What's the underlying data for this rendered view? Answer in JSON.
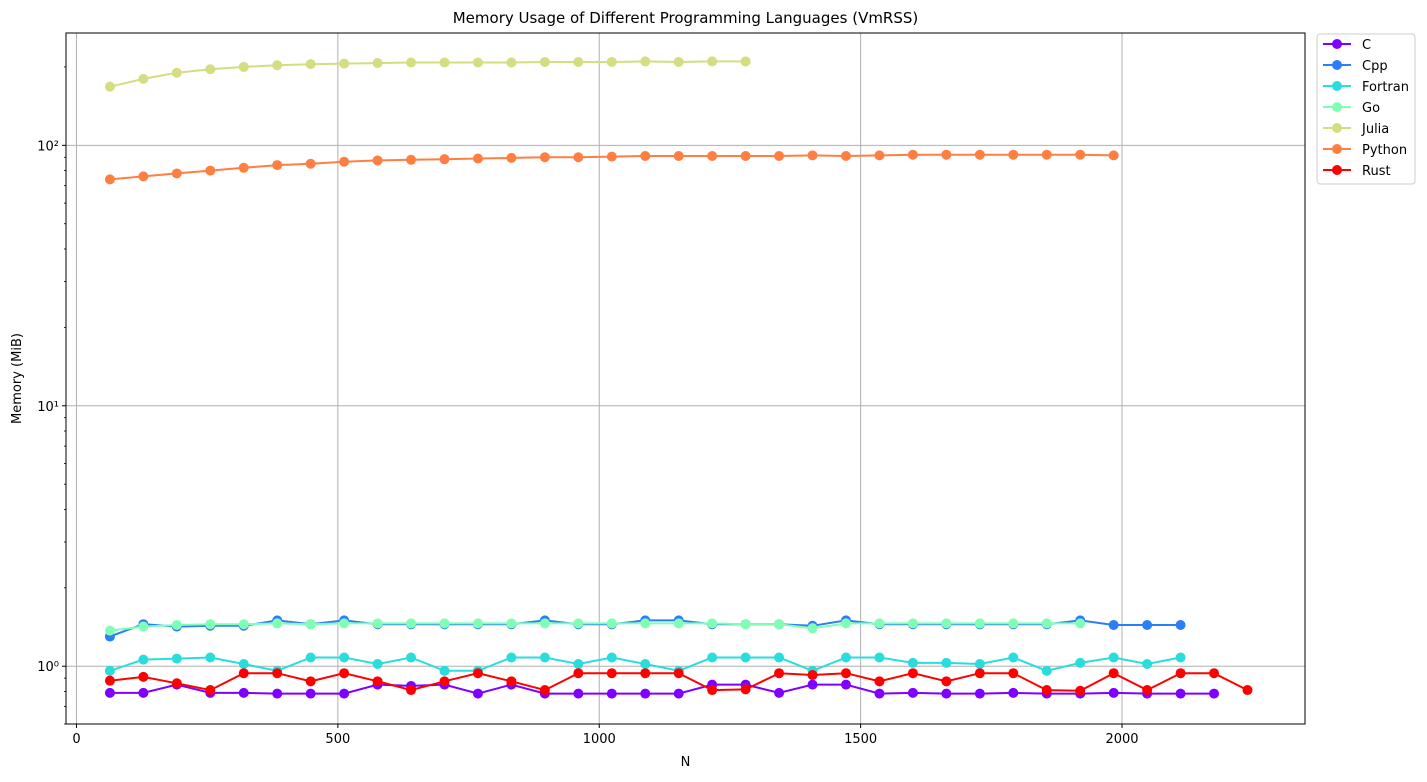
{
  "chart_data": {
    "type": "line",
    "title": "Memory Usage of Different Programming Languages (VmRSS)",
    "xlabel": "N",
    "ylabel": "Memory (MiB)",
    "xlim": [
      -20,
      2350
    ],
    "ylim": [
      0.6,
      270
    ],
    "yscale": "log",
    "grid": true,
    "legend_position": "outside-top-right",
    "x_ticks": [
      0,
      500,
      1000,
      1500,
      2000
    ],
    "x_tick_labels": [
      "0",
      "500",
      "1000",
      "1500",
      "2000"
    ],
    "y_ticks": [
      1,
      10,
      100
    ],
    "y_tick_labels": [
      "10⁰",
      "10¹",
      "10²"
    ],
    "series": [
      {
        "name": "C",
        "color": "#8000ff",
        "x": [
          64,
          128,
          192,
          256,
          320,
          384,
          448,
          512,
          576,
          640,
          704,
          768,
          832,
          896,
          960,
          1024,
          1088,
          1152,
          1216,
          1280,
          1344,
          1408,
          1472,
          1536,
          1600,
          1664,
          1728,
          1792,
          1856,
          1920,
          1984,
          2048,
          2112,
          2176
        ],
        "y": [
          0.79,
          0.79,
          0.85,
          0.79,
          0.79,
          0.785,
          0.785,
          0.785,
          0.85,
          0.84,
          0.85,
          0.785,
          0.85,
          0.785,
          0.785,
          0.785,
          0.785,
          0.785,
          0.85,
          0.85,
          0.79,
          0.85,
          0.85,
          0.785,
          0.79,
          0.785,
          0.785,
          0.79,
          0.785,
          0.785,
          0.79,
          0.785,
          0.785,
          0.785
        ]
      },
      {
        "name": "Cpp",
        "color": "#2c7ef7",
        "x": [
          64,
          128,
          192,
          256,
          320,
          384,
          448,
          512,
          576,
          640,
          704,
          768,
          832,
          896,
          960,
          1024,
          1088,
          1152,
          1216,
          1280,
          1344,
          1408,
          1472,
          1536,
          1600,
          1664,
          1728,
          1792,
          1856,
          1920,
          1984,
          2048,
          2112
        ],
        "y": [
          1.3,
          1.45,
          1.42,
          1.43,
          1.43,
          1.5,
          1.45,
          1.5,
          1.45,
          1.45,
          1.45,
          1.45,
          1.45,
          1.5,
          1.45,
          1.45,
          1.5,
          1.5,
          1.45,
          1.45,
          1.45,
          1.43,
          1.5,
          1.45,
          1.45,
          1.45,
          1.45,
          1.45,
          1.45,
          1.5,
          1.44,
          1.44,
          1.44
        ]
      },
      {
        "name": "Fortran",
        "color": "#2adddd",
        "x": [
          64,
          128,
          192,
          256,
          320,
          384,
          448,
          512,
          576,
          640,
          704,
          768,
          832,
          896,
          960,
          1024,
          1088,
          1152,
          1216,
          1280,
          1344,
          1408,
          1472,
          1536,
          1600,
          1664,
          1728,
          1792,
          1856,
          1920,
          1984,
          2048,
          2112
        ],
        "y": [
          0.96,
          1.06,
          1.07,
          1.08,
          1.02,
          0.96,
          1.08,
          1.08,
          1.02,
          1.08,
          0.96,
          0.96,
          1.08,
          1.08,
          1.02,
          1.08,
          1.02,
          0.96,
          1.08,
          1.08,
          1.08,
          0.96,
          1.08,
          1.08,
          1.03,
          1.03,
          1.02,
          1.08,
          0.96,
          1.03,
          1.08,
          1.02,
          1.08
        ]
      },
      {
        "name": "Go",
        "color": "#80ffb4",
        "x": [
          64,
          128,
          192,
          256,
          320,
          384,
          448,
          512,
          576,
          640,
          704,
          768,
          832,
          896,
          960,
          1024,
          1088,
          1152,
          1216,
          1280,
          1344,
          1408,
          1472,
          1536,
          1600,
          1664,
          1728,
          1792,
          1856,
          1920
        ],
        "y": [
          1.37,
          1.42,
          1.44,
          1.45,
          1.45,
          1.46,
          1.45,
          1.46,
          1.46,
          1.46,
          1.46,
          1.46,
          1.46,
          1.46,
          1.46,
          1.46,
          1.46,
          1.46,
          1.46,
          1.45,
          1.45,
          1.4,
          1.46,
          1.46,
          1.46,
          1.46,
          1.46,
          1.46,
          1.46,
          1.46
        ]
      },
      {
        "name": "Julia",
        "color": "#d4dd80",
        "x": [
          64,
          128,
          192,
          256,
          320,
          384,
          448,
          512,
          576,
          640,
          704,
          768,
          832,
          896,
          960,
          1024,
          1088,
          1152,
          1216,
          1280
        ],
        "y": [
          168,
          180,
          190,
          196,
          200,
          203,
          205,
          206,
          207,
          208,
          208,
          208,
          208,
          209,
          209,
          209,
          210,
          209,
          210,
          210
        ]
      },
      {
        "name": "Python",
        "color": "#ff7e41",
        "x": [
          64,
          128,
          192,
          256,
          320,
          384,
          448,
          512,
          576,
          640,
          704,
          768,
          832,
          896,
          960,
          1024,
          1088,
          1152,
          1216,
          1280,
          1344,
          1408,
          1472,
          1536,
          1600,
          1664,
          1728,
          1792,
          1856,
          1920,
          1984
        ],
        "y": [
          74,
          76,
          78,
          80,
          82,
          84,
          85,
          86.5,
          87.5,
          88,
          88.5,
          89,
          89.5,
          90,
          90,
          90.5,
          91,
          91,
          91,
          91,
          91,
          91.5,
          91,
          91.5,
          92,
          92,
          92,
          92,
          92,
          92,
          91.5
        ]
      },
      {
        "name": "Rust",
        "color": "#ff0000",
        "x": [
          64,
          128,
          192,
          256,
          320,
          384,
          448,
          512,
          576,
          640,
          704,
          768,
          832,
          896,
          960,
          1024,
          1088,
          1152,
          1216,
          1280,
          1344,
          1408,
          1472,
          1536,
          1600,
          1664,
          1728,
          1792,
          1856,
          1920,
          1984,
          2048,
          2112,
          2176,
          2240
        ],
        "y": [
          0.88,
          0.91,
          0.86,
          0.81,
          0.94,
          0.94,
          0.875,
          0.94,
          0.875,
          0.81,
          0.875,
          0.94,
          0.875,
          0.81,
          0.94,
          0.94,
          0.94,
          0.94,
          0.81,
          0.815,
          0.94,
          0.925,
          0.94,
          0.875,
          0.94,
          0.875,
          0.94,
          0.94,
          0.81,
          0.805,
          0.94,
          0.81,
          0.94,
          0.94,
          0.81
        ]
      }
    ]
  }
}
